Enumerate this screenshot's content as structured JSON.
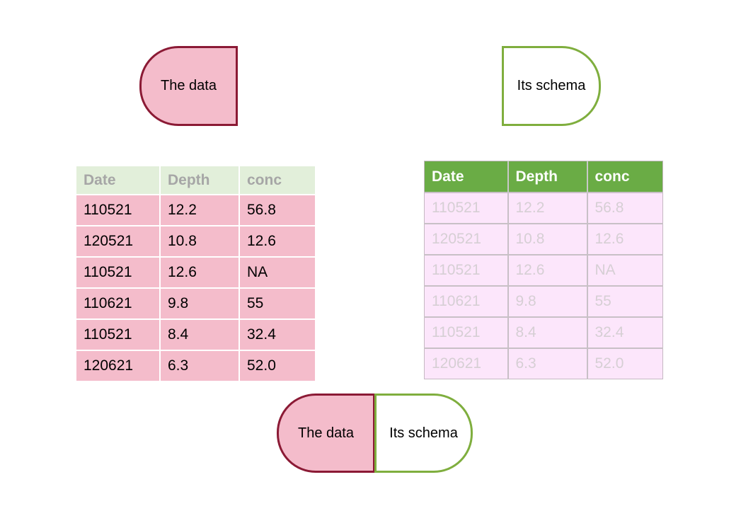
{
  "top_labels": {
    "data": "The data",
    "schema": "Its schema"
  },
  "bottom_labels": {
    "data": "The data",
    "schema": "Its schema"
  },
  "data_table": {
    "headers": [
      "Date",
      "Depth",
      "conc"
    ],
    "rows": [
      [
        "110521",
        "12.2",
        "56.8"
      ],
      [
        "120521",
        "10.8",
        "12.6"
      ],
      [
        "110521",
        "12.6",
        "NA"
      ],
      [
        "110621",
        "9.8",
        "55"
      ],
      [
        "110521",
        "8.4",
        "32.4"
      ],
      [
        "120621",
        "6.3",
        "52.0"
      ]
    ]
  },
  "schema_table": {
    "headers": [
      "Date",
      "Depth",
      "conc"
    ],
    "rows": [
      [
        "110521",
        "12.2",
        "56.8"
      ],
      [
        "120521",
        "10.8",
        "12.6"
      ],
      [
        "110521",
        "12.6",
        "NA"
      ],
      [
        "110621",
        "9.8",
        "55"
      ],
      [
        "110521",
        "8.4",
        "32.4"
      ],
      [
        "120621",
        "6.3",
        "52.0"
      ]
    ]
  },
  "colors": {
    "data_fill": "#f4bccb",
    "data_border": "#8b1a35",
    "schema_border": "#7fae3e",
    "schema_header": "#6aac45",
    "data_header_bg": "#e2efda",
    "schema_body_bg": "#fce6fb"
  }
}
